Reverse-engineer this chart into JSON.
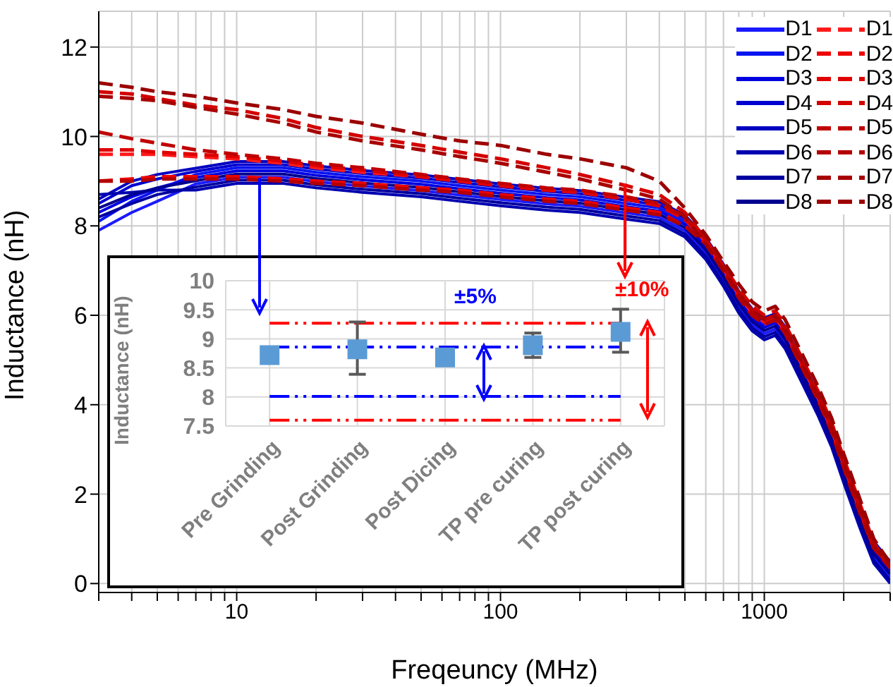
{
  "chart_data": [
    {
      "type": "line",
      "xlabel": "Freqeuncy (MHz)",
      "ylabel": "Inductance (nH)",
      "log": "x",
      "grid": true,
      "legend": "top right",
      "marker": "none",
      "xlim": [
        3,
        3000
      ],
      "ylim": [
        -0.2,
        12.8
      ],
      "xticks": [
        {
          "value": 3,
          "label": null
        },
        {
          "value": 4,
          "label": null
        },
        {
          "value": 5,
          "label": null
        },
        {
          "value": 6,
          "label": null
        },
        {
          "value": 7,
          "label": null
        },
        {
          "value": 8,
          "label": null
        },
        {
          "value": 9,
          "label": null
        },
        10,
        {
          "value": 20,
          "label": null
        },
        {
          "value": 30,
          "label": null
        },
        {
          "value": 40,
          "label": null
        },
        {
          "value": 50,
          "label": null
        },
        {
          "value": 60,
          "label": null
        },
        {
          "value": 70,
          "label": null
        },
        {
          "value": 80,
          "label": null
        },
        {
          "value": 90,
          "label": null
        },
        100,
        {
          "value": 200,
          "label": null
        },
        {
          "value": 300,
          "label": null
        },
        {
          "value": 400,
          "label": null
        },
        {
          "value": 500,
          "label": null
        },
        {
          "value": 600,
          "label": null
        },
        {
          "value": 700,
          "label": null
        },
        {
          "value": 800,
          "label": null
        },
        {
          "value": 900,
          "label": null
        },
        1000,
        {
          "value": 2000,
          "label": null
        },
        {
          "value": 3000,
          "label": null
        }
      ],
      "yticks": [
        0,
        2,
        4,
        6,
        8,
        10,
        12
      ],
      "x": [
        3,
        4,
        5,
        7,
        10,
        15,
        20,
        30,
        50,
        70,
        100,
        150,
        200,
        300,
        400,
        500,
        600,
        700,
        800,
        900,
        1000,
        1100,
        1200,
        1400,
        1600,
        1800,
        2000,
        2300,
        2600,
        3000
      ],
      "series": [
        {
          "name": "D1",
          "color": "#1a1aff",
          "line_style": "solid",
          "values": [
            7.9,
            8.3,
            8.55,
            8.94,
            9.09,
            9.09,
            8.99,
            8.89,
            8.79,
            8.69,
            8.59,
            8.49,
            8.44,
            8.29,
            8.19,
            7.89,
            7.39,
            6.79,
            6.19,
            5.79,
            5.59,
            5.69,
            5.39,
            4.59,
            3.89,
            3.19,
            2.39,
            1.39,
            0.59,
            0.14
          ]
        },
        {
          "name": "D2",
          "color": "#0a14f0",
          "line_style": "solid",
          "values": [
            8.1,
            8.55,
            8.8,
            9.15,
            9.3,
            9.3,
            9.2,
            9.1,
            9.0,
            8.9,
            8.8,
            8.7,
            8.65,
            8.5,
            8.4,
            8.1,
            7.6,
            7.0,
            6.4,
            6.0,
            5.8,
            5.9,
            5.6,
            4.8,
            4.1,
            3.4,
            2.6,
            1.6,
            0.8,
            0.35
          ]
        },
        {
          "name": "D3",
          "color": "#0000e0",
          "line_style": "solid",
          "values": [
            8.3,
            8.65,
            8.85,
            9.08,
            9.23,
            9.23,
            9.13,
            9.03,
            8.93,
            8.83,
            8.73,
            8.63,
            8.58,
            8.43,
            8.33,
            8.03,
            7.53,
            6.93,
            6.33,
            5.93,
            5.73,
            5.83,
            5.53,
            4.73,
            4.03,
            3.33,
            2.53,
            1.53,
            0.73,
            0.28
          ]
        },
        {
          "name": "D4",
          "color": "#0000d0",
          "line_style": "solid",
          "values": [
            8.5,
            8.9,
            9.05,
            9.22,
            9.37,
            9.37,
            9.27,
            9.17,
            9.07,
            8.97,
            8.87,
            8.77,
            8.72,
            8.57,
            8.47,
            8.17,
            7.67,
            7.07,
            6.47,
            6.07,
            5.87,
            5.97,
            5.67,
            4.87,
            4.17,
            3.47,
            2.67,
            1.67,
            0.87,
            0.42
          ]
        },
        {
          "name": "D5",
          "color": "#0000c0",
          "line_style": "solid",
          "values": [
            8.6,
            9.0,
            9.15,
            9.29,
            9.44,
            9.44,
            9.34,
            9.24,
            9.14,
            9.04,
            8.94,
            8.84,
            8.79,
            8.64,
            8.54,
            8.24,
            7.74,
            7.14,
            6.54,
            6.14,
            5.94,
            6.04,
            5.74,
            4.94,
            4.24,
            3.54,
            2.74,
            1.74,
            0.94,
            0.49
          ]
        },
        {
          "name": "D6",
          "color": "#0000b0",
          "line_style": "solid",
          "values": [
            8.7,
            8.75,
            8.8,
            8.8,
            8.95,
            8.95,
            8.85,
            8.75,
            8.65,
            8.55,
            8.45,
            8.35,
            8.3,
            8.15,
            8.05,
            7.75,
            7.25,
            6.65,
            6.05,
            5.65,
            5.45,
            5.55,
            5.25,
            4.45,
            3.75,
            3.05,
            2.25,
            1.25,
            0.45,
            0.0
          ]
        },
        {
          "name": "D7",
          "color": "#0000a0",
          "line_style": "solid",
          "values": [
            8.2,
            8.5,
            8.7,
            8.87,
            9.02,
            9.02,
            8.92,
            8.82,
            8.72,
            8.62,
            8.52,
            8.42,
            8.37,
            8.22,
            8.12,
            7.82,
            7.32,
            6.72,
            6.12,
            5.72,
            5.52,
            5.62,
            5.32,
            4.52,
            3.82,
            3.12,
            2.32,
            1.32,
            0.52,
            0.07
          ]
        },
        {
          "name": "D8",
          "color": "#000090",
          "line_style": "solid",
          "values": [
            8.4,
            8.7,
            8.85,
            9.01,
            9.16,
            9.16,
            9.06,
            8.96,
            8.86,
            8.76,
            8.66,
            8.56,
            8.51,
            8.36,
            8.26,
            7.96,
            7.46,
            6.86,
            6.26,
            5.86,
            5.66,
            5.76,
            5.46,
            4.66,
            3.96,
            3.26,
            2.46,
            1.46,
            0.66,
            0.21
          ]
        },
        {
          "name": "D1",
          "color": "#ff1a1a",
          "line_style": "dashed",
          "values": [
            9.6,
            9.6,
            9.6,
            9.55,
            9.5,
            9.4,
            9.3,
            9.2,
            9.1,
            9.0,
            8.9,
            8.8,
            8.75,
            8.6,
            8.45,
            8.15,
            7.65,
            7.05,
            6.45,
            6.05,
            5.85,
            5.95,
            5.65,
            4.85,
            4.15,
            3.45,
            2.65,
            1.65,
            0.8,
            0.4
          ]
        },
        {
          "name": "D2",
          "color": "#ee0000",
          "line_style": "dashed",
          "values": [
            9.0,
            9.05,
            9.1,
            9.1,
            9.1,
            9.05,
            9.0,
            8.95,
            8.85,
            8.8,
            8.7,
            8.6,
            8.55,
            8.4,
            8.3,
            8.0,
            7.6,
            7.0,
            6.4,
            6.0,
            5.8,
            5.9,
            5.6,
            4.8,
            4.1,
            3.4,
            2.6,
            1.6,
            0.8,
            0.35
          ]
        },
        {
          "name": "D3",
          "color": "#e00000",
          "line_style": "dashed",
          "values": [
            9.7,
            9.7,
            9.65,
            9.6,
            9.55,
            9.45,
            9.35,
            9.25,
            9.1,
            9.0,
            8.9,
            8.8,
            8.75,
            8.6,
            8.45,
            8.15,
            7.7,
            7.1,
            6.5,
            6.1,
            5.9,
            6.0,
            5.7,
            4.9,
            4.2,
            3.5,
            2.7,
            1.7,
            0.8,
            0.4
          ]
        },
        {
          "name": "D4",
          "color": "#d40000",
          "line_style": "dashed",
          "values": [
            11.0,
            10.95,
            10.85,
            10.7,
            10.6,
            10.4,
            10.2,
            10.0,
            9.8,
            9.65,
            9.5,
            9.3,
            9.15,
            8.9,
            8.7,
            8.3,
            7.7,
            7.1,
            6.6,
            6.2,
            6.0,
            6.1,
            5.8,
            5.0,
            4.3,
            3.6,
            2.8,
            1.8,
            0.9,
            0.4
          ]
        },
        {
          "name": "D5",
          "color": "#c00000",
          "line_style": "dashed",
          "values": [
            10.1,
            9.95,
            9.85,
            9.7,
            9.6,
            9.5,
            9.4,
            9.3,
            9.15,
            9.05,
            8.95,
            8.85,
            8.8,
            8.65,
            8.5,
            8.2,
            7.7,
            7.1,
            6.5,
            6.1,
            5.9,
            6.0,
            5.7,
            4.9,
            4.2,
            3.5,
            2.7,
            1.7,
            0.8,
            0.4
          ]
        },
        {
          "name": "D6",
          "color": "#b40000",
          "line_style": "dashed",
          "values": [
            9.0,
            9.0,
            9.05,
            9.05,
            9.05,
            9.0,
            8.95,
            8.9,
            8.8,
            8.75,
            8.65,
            8.55,
            8.5,
            8.35,
            8.25,
            8.0,
            7.6,
            7.0,
            6.4,
            6.0,
            5.8,
            5.9,
            5.6,
            4.8,
            4.1,
            3.4,
            2.6,
            1.6,
            0.8,
            0.35
          ]
        },
        {
          "name": "D7",
          "color": "#a80000",
          "line_style": "dashed",
          "values": [
            10.9,
            10.85,
            10.8,
            10.65,
            10.5,
            10.3,
            10.1,
            9.9,
            9.7,
            9.55,
            9.4,
            9.2,
            9.05,
            8.8,
            8.6,
            8.2,
            7.6,
            7.0,
            6.5,
            6.1,
            5.9,
            6.0,
            5.7,
            4.9,
            4.2,
            3.5,
            2.7,
            1.7,
            0.85,
            0.4
          ]
        },
        {
          "name": "D8",
          "color": "#9c0000",
          "line_style": "dashed",
          "values": [
            11.2,
            11.1,
            11.0,
            10.9,
            10.75,
            10.6,
            10.45,
            10.3,
            10.05,
            9.9,
            9.8,
            9.6,
            9.5,
            9.3,
            9.0,
            8.4,
            7.8,
            7.2,
            6.7,
            6.3,
            6.1,
            6.2,
            5.9,
            5.1,
            4.4,
            3.7,
            2.9,
            1.9,
            1.0,
            0.45
          ]
        }
      ]
    },
    {
      "type": "scatter",
      "ylabel": "Inductance (nH)",
      "grid": true,
      "marker": "square",
      "categories": [
        "Pre Grinding",
        "Post Grinding",
        "Post Dicing",
        "TP pre curing",
        "TP post curing"
      ],
      "ylim": [
        7.5,
        10
      ],
      "yticks": [
        7.5,
        8,
        8.5,
        9,
        9.5,
        10
      ],
      "series": [
        {
          "color": "#5b9bd5",
          "values": [
            8.72,
            8.82,
            8.68,
            8.89,
            9.12
          ],
          "errors": [
            null,
            [
              8.39,
              9.29
            ],
            null,
            [
              8.68,
              9.1
            ],
            [
              8.77,
              9.51
            ]
          ]
        }
      ],
      "ref_lines": [
        {
          "axis": "y",
          "value": 9.27,
          "color": "#ff0000",
          "line_style": "dashed"
        },
        {
          "axis": "y",
          "value": 8.86,
          "color": "#0000ff",
          "line_style": "dashed"
        },
        {
          "axis": "y",
          "value": 8.01,
          "color": "#0000ff",
          "line_style": "dashed"
        },
        {
          "axis": "y",
          "value": 7.6,
          "color": "#ff0000",
          "line_style": "dashed"
        }
      ],
      "annotations": [
        "±5%",
        "±10%"
      ]
    }
  ]
}
